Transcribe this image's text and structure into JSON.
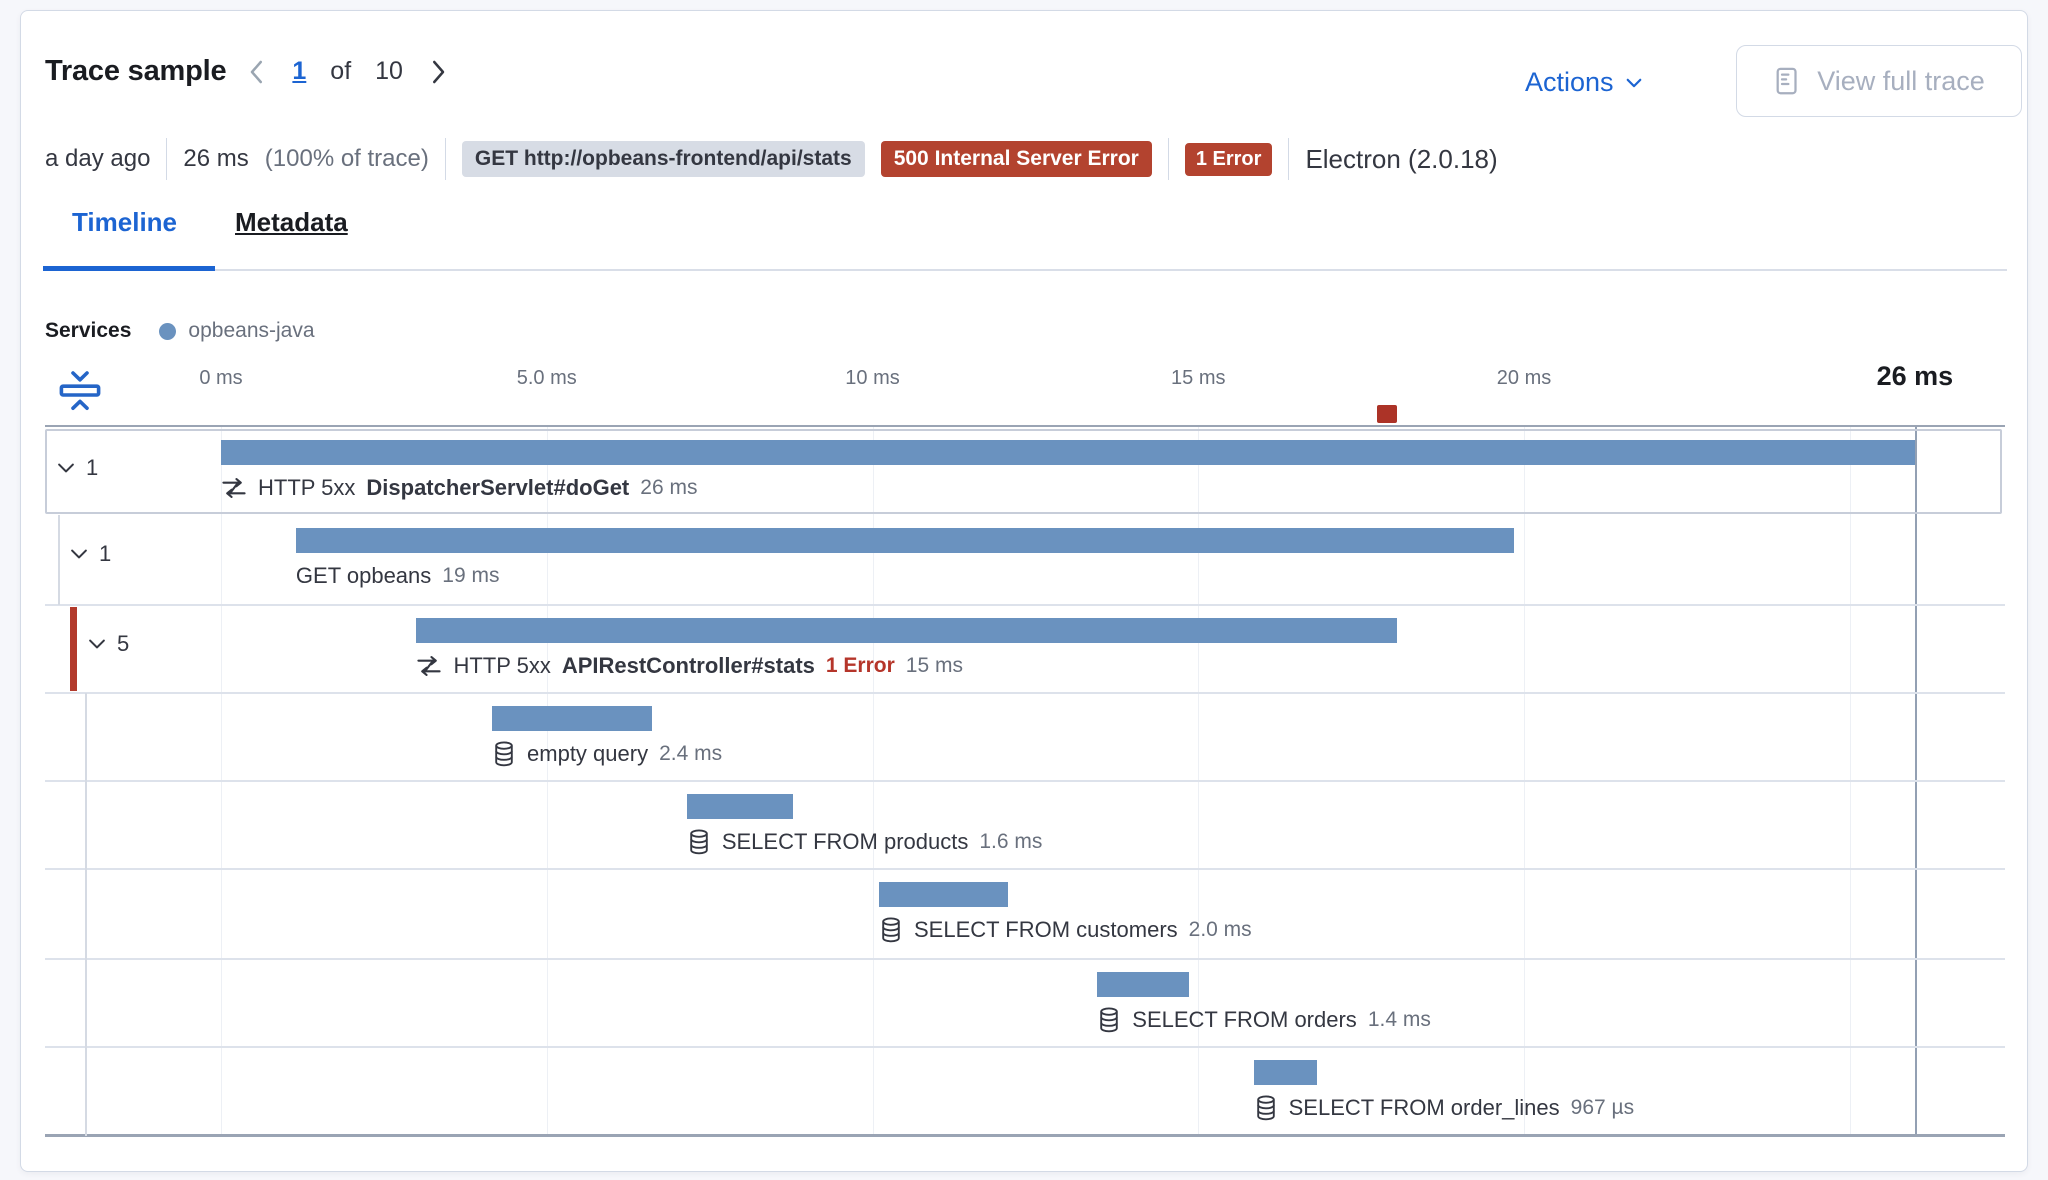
{
  "header": {
    "title": "Trace sample",
    "pager": {
      "current": "1",
      "of_label": "of",
      "total": "10"
    },
    "actions_label": "Actions",
    "view_full_trace_label": "View full trace"
  },
  "summary": {
    "time_ago": "a day ago",
    "duration": "26 ms",
    "duration_pct": "(100% of trace)",
    "url_badge": "GET http://opbeans-frontend/api/stats",
    "status_badge": "500 Internal Server Error",
    "error_badge": "1 Error",
    "agent_label": "Electron (2.0.18)"
  },
  "tabs": [
    {
      "label": "Timeline",
      "active": true
    },
    {
      "label": "Metadata",
      "active": false
    }
  ],
  "legend": {
    "label": "Services",
    "items": [
      {
        "name": "opbeans-java",
        "color": "#6a92bf"
      }
    ]
  },
  "axis": {
    "ticks": [
      {
        "label": "0 ms",
        "ms": 0
      },
      {
        "label": "5.0 ms",
        "ms": 5
      },
      {
        "label": "10 ms",
        "ms": 10
      },
      {
        "label": "15 ms",
        "ms": 15
      },
      {
        "label": "20 ms",
        "ms": 20
      },
      {
        "label": "",
        "ms": 25
      }
    ],
    "end_tick": {
      "label": "26 ms",
      "ms": 26
    },
    "error_marker_ms": 17.9
  },
  "waterfall": {
    "rows": [
      {
        "kind": "transaction",
        "level": 0,
        "children_count": "1",
        "icon": "transaction",
        "prefix": "HTTP 5xx",
        "name": "DispatcherServlet#doGet",
        "duration_label": "26 ms",
        "start_ms": 0,
        "duration_ms": 26,
        "focused": true
      },
      {
        "kind": "span",
        "level": 1,
        "children_count": "1",
        "icon": null,
        "prefix": "",
        "name": "GET opbeans",
        "duration_label": "19 ms",
        "start_ms": 1.15,
        "duration_ms": 18.7
      },
      {
        "kind": "transaction",
        "level": 2,
        "children_count": "5",
        "icon": "transaction",
        "prefix": "HTTP 5xx",
        "name": "APIRestController#stats",
        "error_label": "1 Error",
        "duration_label": "15 ms",
        "start_ms": 3.0,
        "duration_ms": 15.05,
        "has_error": true
      },
      {
        "kind": "span",
        "level": 3,
        "icon": "database",
        "prefix": "",
        "name": "empty query",
        "duration_label": "2.4 ms",
        "start_ms": 4.16,
        "duration_ms": 2.45
      },
      {
        "kind": "span",
        "level": 3,
        "icon": "database",
        "prefix": "",
        "name": "SELECT FROM products",
        "duration_label": "1.6 ms",
        "start_ms": 7.15,
        "duration_ms": 1.63
      },
      {
        "kind": "span",
        "level": 3,
        "icon": "database",
        "prefix": "",
        "name": "SELECT FROM customers",
        "duration_label": "2.0 ms",
        "start_ms": 10.1,
        "duration_ms": 1.98
      },
      {
        "kind": "span",
        "level": 3,
        "icon": "database",
        "prefix": "",
        "name": "SELECT FROM orders",
        "duration_label": "1.4 ms",
        "start_ms": 13.45,
        "duration_ms": 1.41
      },
      {
        "kind": "span",
        "level": 3,
        "icon": "database",
        "prefix": "",
        "name": "SELECT FROM order_lines",
        "duration_label": "967 µs",
        "start_ms": 15.85,
        "duration_ms": 0.97
      }
    ]
  },
  "colors": {
    "primary_blue": "#1c64d2",
    "bar_blue": "#6a92bf",
    "badge_red": "#b3432f",
    "error_text_red": "#b5352a",
    "error_strip_red": "#b23a2c",
    "text_dark": "#343741",
    "text_subdued": "#69707d",
    "border_gray": "#d3dae6"
  }
}
